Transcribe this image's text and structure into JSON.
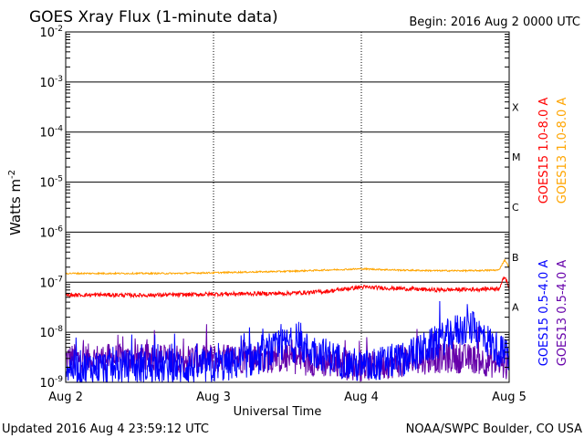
{
  "chart_data": {
    "type": "line",
    "title": "GOES Xray Flux (1-minute data)",
    "begin_label": "Begin:  2016 Aug 2 0000 UTC",
    "ylabel": "Watts m",
    "ylabel_superscript": "-2",
    "xlabel": "Universal Time",
    "y_log_scale": true,
    "ylim": [
      1e-09,
      0.01
    ],
    "y_ticks": [
      {
        "base": "10",
        "exp": "-2",
        "value": 0.01
      },
      {
        "base": "10",
        "exp": "-3",
        "value": 0.001
      },
      {
        "base": "10",
        "exp": "-4",
        "value": 0.0001
      },
      {
        "base": "10",
        "exp": "-5",
        "value": 1e-05
      },
      {
        "base": "10",
        "exp": "-6",
        "value": 1e-06
      },
      {
        "base": "10",
        "exp": "-7",
        "value": 1e-07
      },
      {
        "base": "10",
        "exp": "-8",
        "value": 1e-08
      },
      {
        "base": "10",
        "exp": "-9",
        "value": 1e-09
      }
    ],
    "x_unit": "days since Aug 2 0000 UTC",
    "xlim": [
      0,
      3
    ],
    "x_ticks": [
      {
        "label": "Aug 2",
        "value": 0
      },
      {
        "label": "Aug 3",
        "value": 1
      },
      {
        "label": "Aug 4",
        "value": 2
      },
      {
        "label": "Aug 5",
        "value": 3
      }
    ],
    "flare_classes": [
      {
        "label": "X",
        "value": 0.000316
      },
      {
        "label": "M",
        "value": 3.16e-05
      },
      {
        "label": "C",
        "value": 3.16e-06
      },
      {
        "label": "B",
        "value": 3.16e-07
      },
      {
        "label": "A",
        "value": 3.16e-08
      }
    ],
    "grid": true,
    "legend_position": "right",
    "series": [
      {
        "name": "GOES15 1.0-8.0 A",
        "color": "#ff0000",
        "x": [
          0,
          0.25,
          0.5,
          0.75,
          1.0,
          1.25,
          1.5,
          1.75,
          2.0,
          2.25,
          2.5,
          2.75,
          2.93,
          2.97,
          3.0
        ],
        "values": [
          5.5e-08,
          5.6e-08,
          5.5e-08,
          5.6e-08,
          5.8e-08,
          5.9e-08,
          6e-08,
          6.5e-08,
          8e-08,
          7.5e-08,
          7e-08,
          7.2e-08,
          7.5e-08,
          1.3e-07,
          8e-08
        ]
      },
      {
        "name": "GOES13 1.0-8.0 A",
        "color": "#ffa500",
        "x": [
          0,
          0.25,
          0.5,
          0.75,
          1.0,
          1.25,
          1.5,
          1.75,
          2.0,
          2.25,
          2.5,
          2.75,
          2.93,
          2.97,
          3.0
        ],
        "values": [
          1.5e-07,
          1.5e-07,
          1.5e-07,
          1.5e-07,
          1.55e-07,
          1.6e-07,
          1.65e-07,
          1.75e-07,
          1.85e-07,
          1.75e-07,
          1.7e-07,
          1.7e-07,
          1.75e-07,
          2.8e-07,
          2e-07
        ]
      },
      {
        "name": "GOES15 0.5-4.0 A",
        "color": "#0000ff",
        "x": [
          0,
          0.5,
          1.0,
          1.3,
          1.5,
          1.7,
          2.0,
          2.3,
          2.5,
          2.65,
          2.75,
          2.85,
          3.0
        ],
        "values": [
          2e-09,
          2e-09,
          2e-09,
          3e-09,
          6e-09,
          4e-09,
          2e-09,
          3e-09,
          6e-09,
          1.1e-08,
          1.2e-08,
          7e-09,
          3e-09
        ]
      },
      {
        "name": "GOES13 0.5-4.0 A",
        "color": "#6600aa",
        "x": [
          0,
          0.5,
          1.0,
          1.5,
          2.0,
          2.5,
          2.75,
          3.0
        ],
        "values": [
          3e-09,
          3e-09,
          3e-09,
          3e-09,
          2e-09,
          3e-09,
          3e-09,
          2e-09
        ]
      }
    ]
  },
  "footer": {
    "updated": "Updated 2016 Aug  4 23:59:12 UTC",
    "credit": "NOAA/SWPC Boulder, CO USA"
  }
}
